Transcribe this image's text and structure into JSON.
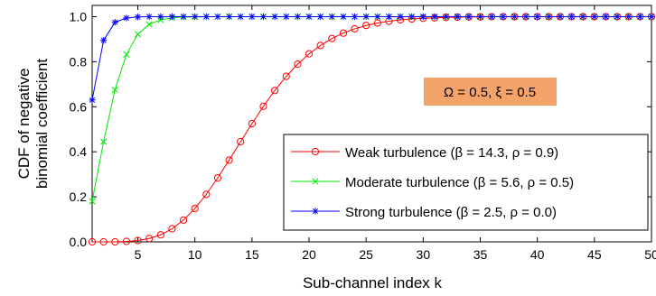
{
  "chart_data": {
    "type": "line",
    "xlabel": "Sub-channel index k",
    "ylabel_lines": [
      "CDF of negative",
      "binomial coefficient"
    ],
    "xlim": [
      1,
      50
    ],
    "ylim": [
      0,
      1.05
    ],
    "xticks": [
      5,
      10,
      15,
      20,
      25,
      30,
      35,
      40,
      45,
      50
    ],
    "xtick_labels": [
      "5",
      "10",
      "15",
      "20",
      "25",
      "30",
      "35",
      "40",
      "45",
      "50"
    ],
    "yticks": [
      0,
      0.2,
      0.4,
      0.6,
      0.8,
      1.0
    ],
    "ytick_labels": [
      "0.0",
      "0.2",
      "0.4",
      "0.6",
      "0.8",
      "1.0"
    ],
    "grid": false,
    "legend_position": "bottom-right",
    "annotation": "Ω = 0.5, ξ = 0.5",
    "x": [
      1,
      2,
      3,
      4,
      5,
      6,
      7,
      8,
      9,
      10,
      11,
      12,
      13,
      14,
      15,
      16,
      17,
      18,
      19,
      20,
      21,
      22,
      23,
      24,
      25,
      26,
      27,
      28,
      29,
      30,
      31,
      32,
      33,
      34,
      35,
      36,
      37,
      38,
      39,
      40,
      41,
      42,
      43,
      44,
      45,
      46,
      47,
      48,
      49,
      50
    ],
    "series": [
      {
        "name": "Weak turbulence (β = 14.3, ρ = 0.9)",
        "color": "#ff0000",
        "marker": "circle",
        "values": [
          0.0,
          0.0,
          0.0,
          0.002,
          0.006,
          0.015,
          0.031,
          0.058,
          0.097,
          0.148,
          0.211,
          0.284,
          0.363,
          0.445,
          0.525,
          0.602,
          0.672,
          0.735,
          0.789,
          0.835,
          0.872,
          0.903,
          0.927,
          0.946,
          0.961,
          0.972,
          0.98,
          0.986,
          0.99,
          0.993,
          0.995,
          0.997,
          0.998,
          0.999,
          0.999,
          1.0,
          1.0,
          1.0,
          1.0,
          1.0,
          1.0,
          1.0,
          1.0,
          1.0,
          1.0,
          1.0,
          1.0,
          1.0,
          1.0,
          1.0
        ]
      },
      {
        "name": "Moderate turbulence (β = 5.6, ρ = 0.5)",
        "color": "#00e600",
        "marker": "x",
        "values": [
          0.18,
          0.445,
          0.675,
          0.832,
          0.922,
          0.966,
          0.986,
          0.995,
          0.998,
          0.999,
          1.0,
          1.0,
          1.0,
          1.0,
          1.0,
          1.0,
          1.0,
          1.0,
          1.0,
          1.0,
          1.0,
          1.0,
          1.0,
          1.0,
          1.0,
          1.0,
          1.0,
          1.0,
          1.0,
          1.0,
          1.0,
          1.0,
          1.0,
          1.0,
          1.0,
          1.0,
          1.0,
          1.0,
          1.0,
          1.0,
          1.0,
          1.0,
          1.0,
          1.0,
          1.0,
          1.0,
          1.0,
          1.0,
          1.0,
          1.0
        ]
      },
      {
        "name": "Strong turbulence (β = 2.5, ρ = 0.0)",
        "color": "#0000ff",
        "marker": "star",
        "values": [
          0.63,
          0.895,
          0.975,
          0.994,
          0.999,
          1.0,
          1.0,
          1.0,
          1.0,
          1.0,
          1.0,
          1.0,
          1.0,
          1.0,
          1.0,
          1.0,
          1.0,
          1.0,
          1.0,
          1.0,
          1.0,
          1.0,
          1.0,
          1.0,
          1.0,
          1.0,
          1.0,
          1.0,
          1.0,
          1.0,
          1.0,
          1.0,
          1.0,
          1.0,
          1.0,
          1.0,
          1.0,
          1.0,
          1.0,
          1.0,
          1.0,
          1.0,
          1.0,
          1.0,
          1.0,
          1.0,
          1.0,
          1.0,
          1.0,
          1.0
        ]
      }
    ]
  },
  "colors": {
    "annotation_fill": "#f4a46a",
    "axis": "#000000"
  }
}
